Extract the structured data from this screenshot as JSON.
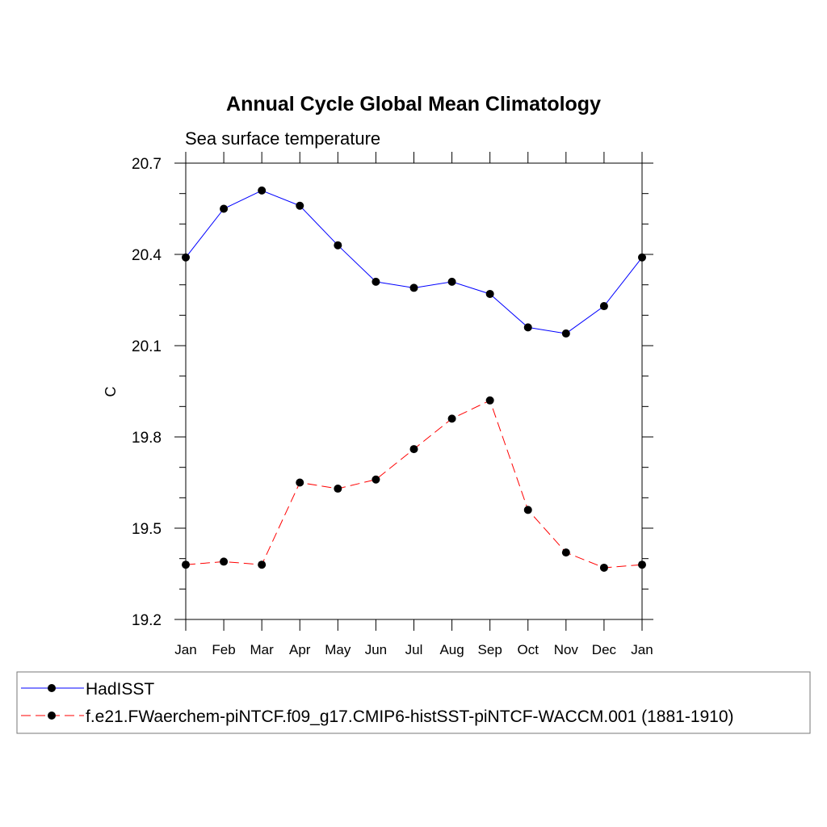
{
  "chart_data": {
    "type": "line",
    "title": "Annual Cycle Global Mean Climatology",
    "subtitle": "Sea surface temperature",
    "xlabel": "",
    "ylabel": "C",
    "categories": [
      "Jan",
      "Feb",
      "Mar",
      "Apr",
      "May",
      "Jun",
      "Jul",
      "Aug",
      "Sep",
      "Oct",
      "Nov",
      "Dec",
      "Jan"
    ],
    "ylim": [
      19.2,
      20.7
    ],
    "yticks": [
      "20.7",
      "20.4",
      "20.1",
      "19.8",
      "19.5",
      "19.2"
    ],
    "grid": false,
    "legend_position": "bottom",
    "series": [
      {
        "name": "HadISST",
        "color": "#0000ff",
        "dash": "solid",
        "marker": "filled-circle",
        "values": [
          20.39,
          20.55,
          20.61,
          20.56,
          20.43,
          20.31,
          20.29,
          20.31,
          20.27,
          20.16,
          20.14,
          20.23,
          20.39
        ]
      },
      {
        "name": "f.e21.FWaerchem-piNTCF.f09_g17.CMIP6-histSST-piNTCF-WACCM.001 (1881-1910)",
        "color": "#ff0000",
        "dash": "dashed",
        "marker": "filled-circle",
        "values": [
          19.38,
          19.39,
          19.38,
          19.65,
          19.63,
          19.66,
          19.76,
          19.86,
          19.92,
          19.56,
          19.42,
          19.37,
          19.38
        ]
      }
    ]
  }
}
